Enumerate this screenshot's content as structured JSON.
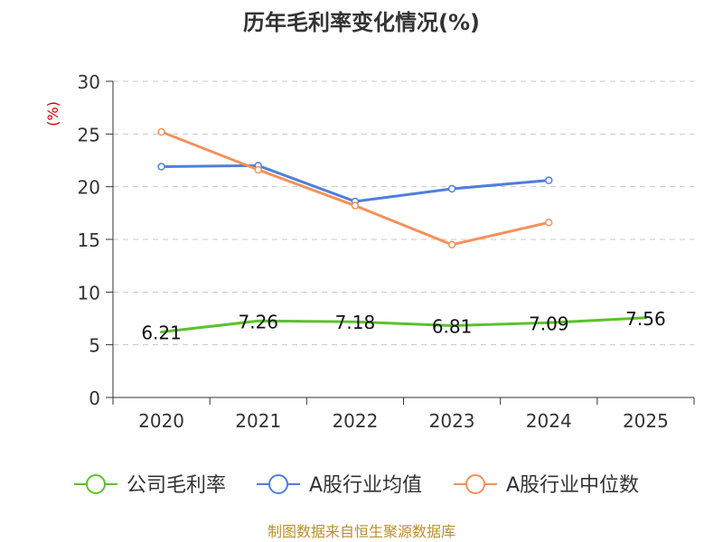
{
  "chart_data": {
    "type": "line",
    "title": "历年毛利率变化情况(%)",
    "ylabel": "(%)",
    "xlabel": "",
    "categories": [
      "2020",
      "2021",
      "2022",
      "2023",
      "2024",
      "2025"
    ],
    "ylim": [
      0,
      30
    ],
    "yticks": [
      "0",
      "5",
      "10",
      "15",
      "20",
      "25",
      "30"
    ],
    "grid": true,
    "legend_position": "bottom",
    "series": [
      {
        "name": "公司毛利率",
        "color": "#5cc12d",
        "values": [
          6.21,
          7.26,
          7.18,
          6.81,
          7.09,
          7.56
        ],
        "labels": [
          "6.21",
          "7.26",
          "7.18",
          "6.81",
          "7.09",
          "7.56"
        ],
        "show_markers": false
      },
      {
        "name": "A股行业均值",
        "color": "#4f7fdc",
        "values": [
          21.9,
          22.0,
          18.6,
          19.8,
          20.6,
          null
        ],
        "show_markers": true
      },
      {
        "name": "A股行业中位数",
        "color": "#f5905a",
        "values": [
          25.2,
          21.6,
          18.2,
          14.5,
          16.6,
          null
        ],
        "show_markers": true
      }
    ]
  },
  "source": "制图数据来自恒生聚源数据库",
  "colors": {
    "title": "#333333",
    "axis_label": "#cc0000",
    "source": "#b8902c"
  }
}
